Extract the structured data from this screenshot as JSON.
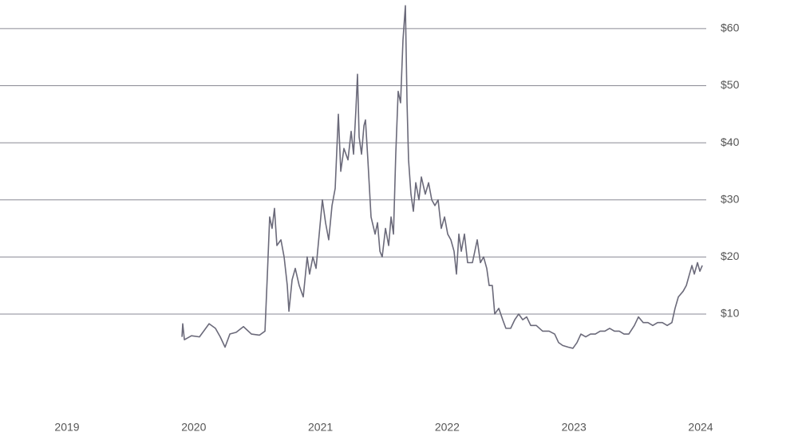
{
  "chart_data": {
    "type": "line",
    "color": "#6b6a7a",
    "grid": true,
    "xlim": [
      2018.471,
      2024.044
    ],
    "ylim": [
      0,
      65
    ],
    "xticks": [
      2019,
      2020,
      2021,
      2022,
      2023,
      2024
    ],
    "yticks": [
      {
        "value": 10,
        "label": "$10"
      },
      {
        "value": 20,
        "label": "$20"
      },
      {
        "value": 30,
        "label": "$30"
      },
      {
        "value": 40,
        "label": "$40"
      },
      {
        "value": 50,
        "label": "$50"
      },
      {
        "value": 60,
        "label": "$60"
      }
    ],
    "x": [
      2019.907,
      2019.913,
      2019.926,
      2019.982,
      2020.045,
      2020.121,
      2020.171,
      2020.209,
      2020.247,
      2020.285,
      2020.335,
      2020.392,
      2020.455,
      2020.518,
      2020.562,
      2020.581,
      2020.599,
      2020.618,
      2020.637,
      2020.656,
      2020.688,
      2020.713,
      2020.738,
      2020.751,
      2020.776,
      2020.801,
      2020.832,
      2020.864,
      2020.895,
      2020.914,
      2020.94,
      2020.965,
      2020.99,
      2021.015,
      2021.04,
      2021.065,
      2021.091,
      2021.116,
      2021.141,
      2021.16,
      2021.185,
      2021.217,
      2021.242,
      2021.261,
      2021.28,
      2021.292,
      2021.305,
      2021.324,
      2021.343,
      2021.355,
      2021.374,
      2021.399,
      2021.431,
      2021.45,
      2021.469,
      2021.487,
      2021.513,
      2021.538,
      2021.557,
      2021.576,
      2021.594,
      2021.613,
      2021.632,
      2021.651,
      2021.67,
      2021.683,
      2021.695,
      2021.714,
      2021.733,
      2021.752,
      2021.777,
      2021.796,
      2021.827,
      2021.853,
      2021.878,
      2021.903,
      2021.928,
      2021.953,
      2021.979,
      2022.004,
      2022.029,
      2022.054,
      2022.073,
      2022.092,
      2022.111,
      2022.136,
      2022.161,
      2022.199,
      2022.237,
      2022.262,
      2022.287,
      2022.312,
      2022.331,
      2022.356,
      2022.375,
      2022.407,
      2022.438,
      2022.463,
      2022.501,
      2022.533,
      2022.564,
      2022.596,
      2022.627,
      2022.659,
      2022.703,
      2022.753,
      2022.804,
      2022.848,
      2022.879,
      2022.911,
      2022.955,
      2022.992,
      2023.024,
      2023.055,
      2023.093,
      2023.131,
      2023.169,
      2023.207,
      2023.244,
      2023.282,
      2023.32,
      2023.358,
      2023.395,
      2023.433,
      2023.477,
      2023.509,
      2023.547,
      2023.584,
      2023.622,
      2023.66,
      2023.698,
      2023.736,
      2023.773,
      2023.798,
      2023.824,
      2023.862,
      2023.887,
      2023.912,
      2023.931,
      2023.95,
      2023.975,
      2023.994,
      2024.013
    ],
    "values": [
      6,
      8.3,
      5.5,
      6.2,
      6,
      8.3,
      7.5,
      6,
      4.2,
      6.5,
      6.8,
      7.8,
      6.5,
      6.3,
      7,
      17,
      27,
      25,
      28.5,
      22,
      23,
      20,
      15,
      10.5,
      16,
      18,
      15,
      13,
      20,
      17,
      20,
      18,
      24,
      30,
      26,
      23,
      29,
      32,
      45,
      35,
      39,
      37,
      42,
      38,
      46,
      52,
      41,
      38,
      43,
      44,
      37,
      27,
      24,
      26,
      21,
      20,
      25,
      22,
      27,
      24,
      38,
      49,
      47,
      58,
      64,
      47,
      37,
      31,
      28,
      33,
      30,
      34,
      31,
      33,
      30,
      29,
      30,
      25,
      27,
      24,
      23,
      21,
      17,
      24,
      21,
      24,
      19,
      19,
      23,
      19,
      20,
      18,
      15,
      15,
      10,
      11,
      9,
      7.5,
      7.5,
      9,
      10,
      9,
      9.5,
      8,
      8,
      7,
      7,
      6.5,
      5,
      4.5,
      4.2,
      4,
      5,
      6.5,
      6,
      6.5,
      6.5,
      7,
      7,
      7.5,
      7,
      7,
      6.5,
      6.5,
      8,
      9.5,
      8.5,
      8.5,
      8,
      8.5,
      8.5,
      8,
      8.5,
      11,
      13,
      14,
      15,
      17,
      18.5,
      17,
      19,
      17.5,
      18.5
    ]
  }
}
